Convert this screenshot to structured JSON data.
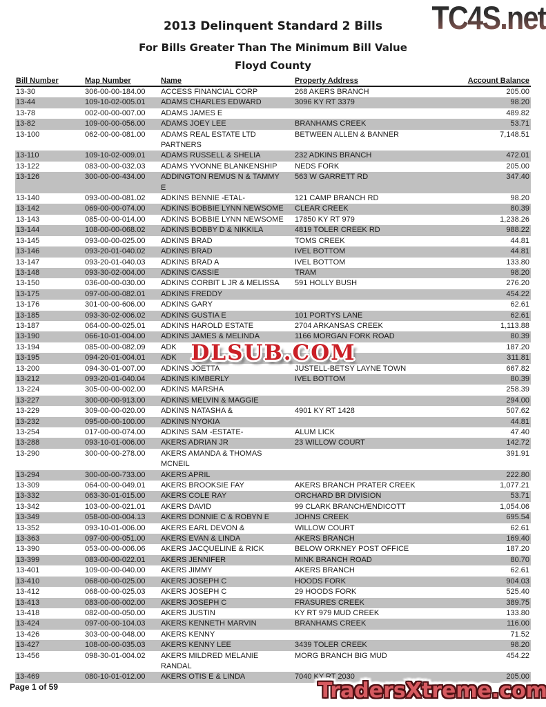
{
  "page": {
    "title": "2013 Delinquent Standard 2 Bills",
    "subtitle": "For Bills Greater Than The Minimum Bill Value",
    "county": "Floyd County",
    "footer": "Page 1 of 59"
  },
  "logo": {
    "text": "TC4S.net",
    "gradient_top": "#2e2e2e",
    "gradient_bottom": "#946059"
  },
  "watermarks": {
    "center": {
      "text": "DLSUB.COM",
      "color": "#cb2027"
    },
    "bottom": {
      "text": "TradersXtreme.com",
      "color": "#d65a60"
    }
  },
  "table": {
    "columns": [
      "Bill Number",
      "Map Number",
      "Name",
      "Property Address",
      "Account Balance"
    ],
    "stripe_color": "#c0c0c0",
    "rows": [
      {
        "bill": "13-30",
        "map": "306-00-00-184.00",
        "name": "ACCESS FINANCIAL CORP",
        "address": "268 AKERS BRANCH",
        "balance": "205.00"
      },
      {
        "bill": "13-44",
        "map": "109-10-02-005.01",
        "name": "ADAMS CHARLES EDWARD",
        "address": "3096 KY RT 3379",
        "balance": "98.20"
      },
      {
        "bill": "13-78",
        "map": "002-00-00-007.00",
        "name": "ADAMS JAMES E",
        "address": "",
        "balance": "489.82"
      },
      {
        "bill": "13-82",
        "map": "109-00-00-056.00",
        "name": "ADAMS JOEY LEE",
        "address": "BRANHAMS CREEK",
        "balance": "53.71"
      },
      {
        "bill": "13-100",
        "map": "062-00-00-081.00",
        "name": "ADAMS REAL ESTATE LTD\nPARTNERS",
        "address": "BETWEEN ALLEN & BANNER",
        "balance": "7,148.51"
      },
      {
        "bill": "13-110",
        "map": "109-10-02-009.01",
        "name": "ADAMS RUSSELL & SHELIA",
        "address": "232 ADKINS BRANCH",
        "balance": "472.01"
      },
      {
        "bill": "13-122",
        "map": "083-00-00-032.03",
        "name": "ADAMS YVONNE BLANKENSHIP",
        "address": "NEDS FORK",
        "balance": "205.00"
      },
      {
        "bill": "13-126",
        "map": "300-00-00-434.00",
        "name": "ADDINGTON REMUS N & TAMMY\nE",
        "address": "563 W GARRETT RD",
        "balance": "347.40"
      },
      {
        "bill": "13-140",
        "map": "093-00-00-081.02",
        "name": "ADKINS BENNIE -ETAL-",
        "address": "121 CAMP BRANCH RD",
        "balance": "98.20"
      },
      {
        "bill": "13-142",
        "map": "069-00-00-074.00",
        "name": "ADKINS BOBBIE LYNN NEWSOME",
        "address": "CLEAR CREEK",
        "balance": "80.39"
      },
      {
        "bill": "13-143",
        "map": "085-00-00-014.00",
        "name": "ADKINS BOBBIE LYNN NEWSOME",
        "address": "17850 KY RT 979",
        "balance": "1,238.26"
      },
      {
        "bill": "13-144",
        "map": "108-00-00-068.02",
        "name": "ADKINS BOBBY D & NIKKILA",
        "address": "4819 TOLER CREEK RD",
        "balance": "988.22"
      },
      {
        "bill": "13-145",
        "map": "093-00-00-025.00",
        "name": "ADKINS BRAD",
        "address": "TOMS CREEK",
        "balance": "44.81"
      },
      {
        "bill": "13-146",
        "map": "093-20-01-040.02",
        "name": "ADKINS BRAD",
        "address": "IVEL BOTTOM",
        "balance": "44.81"
      },
      {
        "bill": "13-147",
        "map": "093-20-01-040.03",
        "name": "ADKINS BRAD A",
        "address": "IVEL BOTTOM",
        "balance": "133.80"
      },
      {
        "bill": "13-148",
        "map": "093-30-02-004.00",
        "name": "ADKINS CASSIE",
        "address": "TRAM",
        "balance": "98.20"
      },
      {
        "bill": "13-150",
        "map": "036-00-00-030.00",
        "name": "ADKINS CORBIT L JR & MELISSA",
        "address": "591 HOLLY BUSH",
        "balance": "276.20"
      },
      {
        "bill": "13-175",
        "map": "097-00-00-082.01",
        "name": "ADKINS FREDDY",
        "address": "",
        "balance": "454.22"
      },
      {
        "bill": "13-176",
        "map": "301-00-00-606.00",
        "name": "ADKINS GARY",
        "address": "",
        "balance": "62.61"
      },
      {
        "bill": "13-185",
        "map": "093-30-02-006.02",
        "name": "ADKINS GUSTIA E",
        "address": "101 PORTYS LANE",
        "balance": "62.61"
      },
      {
        "bill": "13-187",
        "map": "064-00-00-025.01",
        "name": "ADKINS HAROLD ESTATE",
        "address": "2704 ARKANSAS CREEK",
        "balance": "1,113.88"
      },
      {
        "bill": "13-190",
        "map": "066-10-01-004.00",
        "name": "ADKINS JAMES & MELINDA",
        "address": "1166 MORGAN FORK ROAD",
        "balance": "80.39"
      },
      {
        "bill": "13-194",
        "map": "085-00-00-082.09",
        "name": "ADK",
        "address": "",
        "balance": "187.20"
      },
      {
        "bill": "13-195",
        "map": "094-20-01-004.01",
        "name": "ADK",
        "address": "",
        "balance": "311.81"
      },
      {
        "bill": "13-200",
        "map": "094-30-01-007.00",
        "name": "ADKINS JOETTA",
        "address": "JUSTELL-BETSY LAYNE TOWN",
        "balance": "667.82"
      },
      {
        "bill": "13-212",
        "map": "093-20-01-040.04",
        "name": "ADKINS KIMBERLY",
        "address": "IVEL BOTTOM",
        "balance": "80.39"
      },
      {
        "bill": "13-224",
        "map": "305-00-00-002.00",
        "name": "ADKINS MARSHA",
        "address": "",
        "balance": "258.39"
      },
      {
        "bill": "13-227",
        "map": "300-00-00-913.00",
        "name": "ADKINS MELVIN & MAGGIE",
        "address": "",
        "balance": "294.00"
      },
      {
        "bill": "13-229",
        "map": "309-00-00-020.00",
        "name": "ADKINS NATASHA &",
        "address": "4901 KY RT 1428",
        "balance": "507.62"
      },
      {
        "bill": "13-232",
        "map": "095-00-00-100.00",
        "name": "ADKINS NYOKIA",
        "address": "",
        "balance": "44.81"
      },
      {
        "bill": "13-254",
        "map": "017-00-00-074.00",
        "name": "ADKINS SAM -ESTATE-",
        "address": "ALUM LICK",
        "balance": "47.40"
      },
      {
        "bill": "13-288",
        "map": "093-10-01-006.00",
        "name": "AKERS ADRIAN JR",
        "address": "23 WILLOW COURT",
        "balance": "142.72"
      },
      {
        "bill": "13-290",
        "map": "300-00-00-278.00",
        "name": "AKERS AMANDA & THOMAS\nMCNEIL",
        "address": "",
        "balance": "391.91"
      },
      {
        "bill": "13-294",
        "map": "300-00-00-733.00",
        "name": "AKERS APRIL",
        "address": "",
        "balance": "222.80"
      },
      {
        "bill": "13-309",
        "map": "064-00-00-049.01",
        "name": "AKERS BROOKSIE FAY",
        "address": "AKERS BRANCH PRATER CREEK",
        "balance": "1,077.21"
      },
      {
        "bill": "13-332",
        "map": "063-30-01-015.00",
        "name": "AKERS COLE RAY",
        "address": "ORCHARD BR DIVISION",
        "balance": "53.71"
      },
      {
        "bill": "13-342",
        "map": "103-00-00-021.01",
        "name": "AKERS DAVID",
        "address": "99 CLARK BRANCH/ENDICOTT",
        "balance": "1,054.06"
      },
      {
        "bill": "13-349",
        "map": "058-00-00-004.13",
        "name": "AKERS DONNIE C & ROBYN E",
        "address": "JOHNS CREEK",
        "balance": "695.54"
      },
      {
        "bill": "13-352",
        "map": "093-10-01-006.00",
        "name": "AKERS EARL DEVON &",
        "address": "WILLOW COURT",
        "balance": "62.61"
      },
      {
        "bill": "13-363",
        "map": "097-00-00-051.00",
        "name": "AKERS EVAN & LINDA",
        "address": "AKERS BRANCH",
        "balance": "169.40"
      },
      {
        "bill": "13-390",
        "map": "053-00-00-006.06",
        "name": "AKERS JACQUELINE & RICK",
        "address": "BELOW ORKNEY POST OFFICE",
        "balance": "187.20"
      },
      {
        "bill": "13-399",
        "map": "083-00-00-022.01",
        "name": "AKERS JENNIFER",
        "address": "MINK BRANCH ROAD",
        "balance": "80.70"
      },
      {
        "bill": "13-401",
        "map": "109-00-00-040.00",
        "name": "AKERS JIMMY",
        "address": "AKERS BRANCH",
        "balance": "62.61"
      },
      {
        "bill": "13-410",
        "map": "068-00-00-025.00",
        "name": "AKERS JOSEPH C",
        "address": "HOODS FORK",
        "balance": "904.03"
      },
      {
        "bill": "13-412",
        "map": "068-00-00-025.03",
        "name": "AKERS JOSEPH C",
        "address": "29 HOODS FORK",
        "balance": "525.40"
      },
      {
        "bill": "13-413",
        "map": "083-00-00-002.00",
        "name": "AKERS JOSEPH C",
        "address": "FRASURES CREEK",
        "balance": "389.75"
      },
      {
        "bill": "13-418",
        "map": "082-00-00-050.00",
        "name": "AKERS JUSTIN",
        "address": "KY RT 979 MUD CREEK",
        "balance": "133.80"
      },
      {
        "bill": "13-424",
        "map": "097-00-00-104.03",
        "name": "AKERS KENNETH MARVIN",
        "address": "BRANHAMS CREEK",
        "balance": "116.00"
      },
      {
        "bill": "13-426",
        "map": "303-00-00-048.00",
        "name": "AKERS KENNY",
        "address": "",
        "balance": "71.52"
      },
      {
        "bill": "13-427",
        "map": "108-00-00-035.03",
        "name": "AKERS KENNY LEE",
        "address": "3439 TOLER CREEK",
        "balance": "98.20"
      },
      {
        "bill": "13-456",
        "map": "098-30-01-004.02",
        "name": "AKERS MILDRED  MELANIE\nRANDAL",
        "address": "MORG BRANCH BIG MUD",
        "balance": "454.22"
      },
      {
        "bill": "13-469",
        "map": "080-10-01-012.00",
        "name": "AKERS OTIS E & LINDA",
        "address": "7040 KY RT 2030",
        "balance": "205.00"
      }
    ]
  }
}
